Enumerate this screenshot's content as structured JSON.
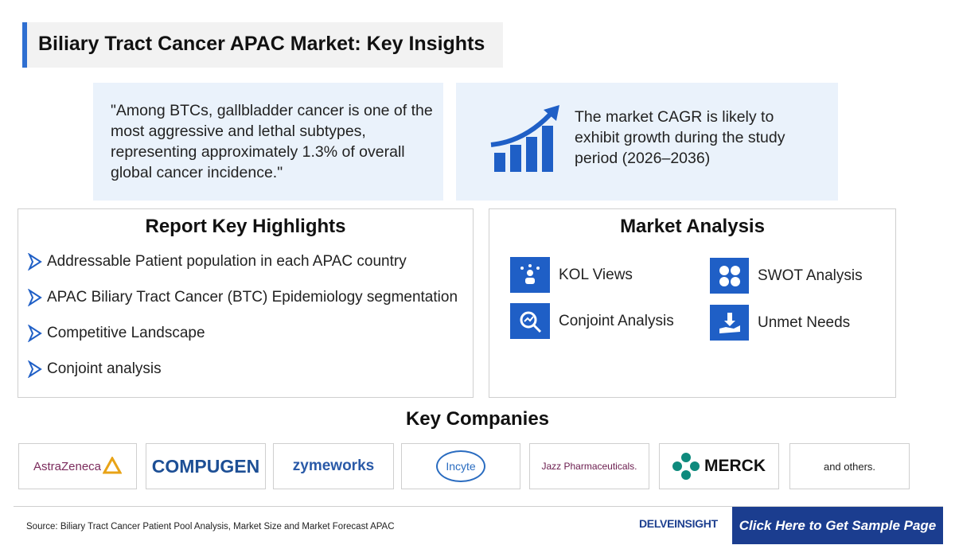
{
  "header": {
    "title": "Biliary Tract Cancer APAC Market: Key Insights"
  },
  "insights": {
    "quote": "\"Among BTCs, gallbladder cancer is one of the most aggressive and lethal subtypes, representing approximately 1.3% of overall global cancer incidence.\"",
    "cagr": "The market CAGR is likely to exhibit growth during the study period (2026–2036)"
  },
  "highlights": {
    "title": "Report Key Highlights",
    "items": [
      "Addressable Patient population in each APAC country",
      "APAC Biliary Tract Cancer (BTC) Epidemiology segmentation",
      "Competitive Landscape",
      "Conjoint analysis"
    ]
  },
  "market_analysis": {
    "title": "Market Analysis",
    "items": [
      "KOL Views",
      "SWOT Analysis",
      "Conjoint Analysis",
      "Unmet Needs"
    ]
  },
  "companies": {
    "title": "Key Companies",
    "items": [
      "AstraZeneca",
      "COMPUGEN",
      "zymeworks",
      "Incyte",
      "Jazz Pharmaceuticals.",
      "MERCK",
      "and others."
    ]
  },
  "footer": {
    "source": "Source: Biliary Tract Cancer Patient Pool Analysis, Market Size and Market Forecast APAC",
    "brand": "DELVEINSIGHT",
    "cta": "Click Here to Get Sample Page"
  }
}
